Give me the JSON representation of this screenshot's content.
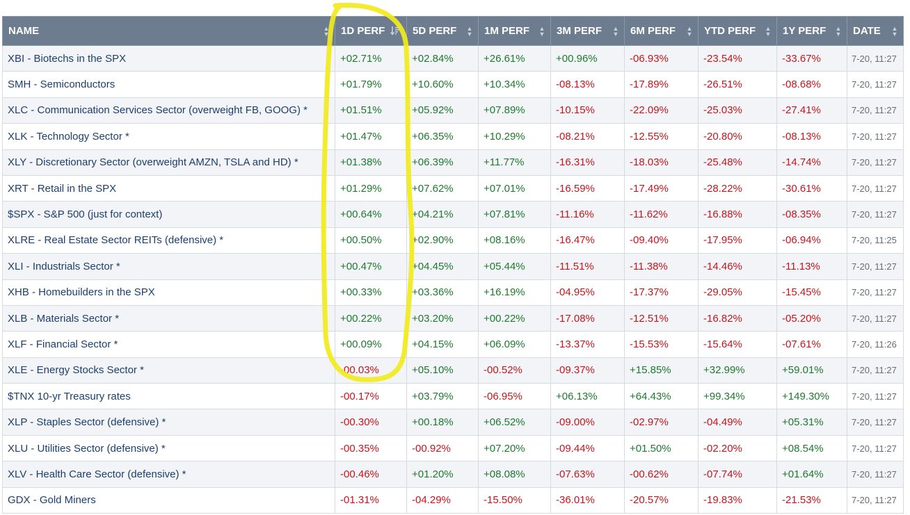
{
  "table": {
    "columns": [
      {
        "key": "name",
        "label": "NAME"
      },
      {
        "key": "d1",
        "label": "1D PERF"
      },
      {
        "key": "d5",
        "label": "5D PERF"
      },
      {
        "key": "m1",
        "label": "1M PERF"
      },
      {
        "key": "m3",
        "label": "3M PERF"
      },
      {
        "key": "m6",
        "label": "6M PERF"
      },
      {
        "key": "ytd",
        "label": "YTD PERF"
      },
      {
        "key": "y1",
        "label": "1Y PERF"
      },
      {
        "key": "date",
        "label": "DATE"
      }
    ],
    "sorted_column": "1D PERF",
    "sort_direction": "descending",
    "rows": [
      {
        "name": "XBI - Biotechs in the SPX",
        "d1": "+02.71%",
        "d5": "+02.84%",
        "m1": "+26.61%",
        "m3": "+00.96%",
        "m6": "-06.93%",
        "ytd": "-23.54%",
        "y1": "-33.67%",
        "date": "7-20, 11:27"
      },
      {
        "name": "SMH - Semiconductors",
        "d1": "+01.79%",
        "d5": "+10.60%",
        "m1": "+10.34%",
        "m3": "-08.13%",
        "m6": "-17.89%",
        "ytd": "-26.51%",
        "y1": "-08.68%",
        "date": "7-20, 11:27"
      },
      {
        "name": "XLC - Communication Services Sector (overweight FB, GOOG) *",
        "d1": "+01.51%",
        "d5": "+05.92%",
        "m1": "+07.89%",
        "m3": "-10.15%",
        "m6": "-22.09%",
        "ytd": "-25.03%",
        "y1": "-27.41%",
        "date": "7-20, 11:27"
      },
      {
        "name": "XLK - Technology Sector *",
        "d1": "+01.47%",
        "d5": "+06.35%",
        "m1": "+10.29%",
        "m3": "-08.21%",
        "m6": "-12.55%",
        "ytd": "-20.80%",
        "y1": "-08.13%",
        "date": "7-20, 11:27"
      },
      {
        "name": "XLY - Discretionary Sector (overweight AMZN, TSLA and HD) *",
        "d1": "+01.38%",
        "d5": "+06.39%",
        "m1": "+11.77%",
        "m3": "-16.31%",
        "m6": "-18.03%",
        "ytd": "-25.48%",
        "y1": "-14.74%",
        "date": "7-20, 11:27"
      },
      {
        "name": "XRT - Retail in the SPX",
        "d1": "+01.29%",
        "d5": "+07.62%",
        "m1": "+07.01%",
        "m3": "-16.59%",
        "m6": "-17.49%",
        "ytd": "-28.22%",
        "y1": "-30.61%",
        "date": "7-20, 11:27"
      },
      {
        "name": "$SPX - S&P 500 (just for context)",
        "d1": "+00.64%",
        "d5": "+04.21%",
        "m1": "+07.81%",
        "m3": "-11.16%",
        "m6": "-11.62%",
        "ytd": "-16.88%",
        "y1": "-08.35%",
        "date": "7-20, 11:27"
      },
      {
        "name": "XLRE - Real Estate Sector REITs (defensive) *",
        "d1": "+00.50%",
        "d5": "+02.90%",
        "m1": "+08.16%",
        "m3": "-16.47%",
        "m6": "-09.40%",
        "ytd": "-17.95%",
        "y1": "-06.94%",
        "date": "7-20, 11:25"
      },
      {
        "name": "XLI - Industrials Sector *",
        "d1": "+00.47%",
        "d5": "+04.45%",
        "m1": "+05.44%",
        "m3": "-11.51%",
        "m6": "-11.38%",
        "ytd": "-14.46%",
        "y1": "-11.13%",
        "date": "7-20, 11:27"
      },
      {
        "name": "XHB - Homebuilders in the SPX",
        "d1": "+00.33%",
        "d5": "+03.36%",
        "m1": "+16.19%",
        "m3": "-04.95%",
        "m6": "-17.37%",
        "ytd": "-29.05%",
        "y1": "-15.45%",
        "date": "7-20, 11:27"
      },
      {
        "name": "XLB - Materials Sector *",
        "d1": "+00.22%",
        "d5": "+03.20%",
        "m1": "+00.22%",
        "m3": "-17.08%",
        "m6": "-12.51%",
        "ytd": "-16.82%",
        "y1": "-05.20%",
        "date": "7-20, 11:27"
      },
      {
        "name": "XLF - Financial Sector *",
        "d1": "+00.09%",
        "d5": "+04.15%",
        "m1": "+06.09%",
        "m3": "-13.37%",
        "m6": "-15.53%",
        "ytd": "-15.64%",
        "y1": "-07.61%",
        "date": "7-20, 11:26"
      },
      {
        "name": "XLE - Energy Stocks Sector *",
        "d1": "-00.03%",
        "d5": "+05.10%",
        "m1": "-00.52%",
        "m3": "-09.37%",
        "m6": "+15.85%",
        "ytd": "+32.99%",
        "y1": "+59.01%",
        "date": "7-20, 11:27"
      },
      {
        "name": "$TNX 10-yr Treasury rates",
        "d1": "-00.17%",
        "d5": "+03.79%",
        "m1": "-06.95%",
        "m3": "+06.13%",
        "m6": "+64.43%",
        "ytd": "+99.34%",
        "y1": "+149.30%",
        "date": "7-20, 11:27"
      },
      {
        "name": "XLP - Staples Sector (defensive) *",
        "d1": "-00.30%",
        "d5": "+00.18%",
        "m1": "+06.52%",
        "m3": "-09.00%",
        "m6": "-02.97%",
        "ytd": "-04.49%",
        "y1": "+05.31%",
        "date": "7-20, 11:27"
      },
      {
        "name": "XLU - Utilities Sector (defensive) *",
        "d1": "-00.35%",
        "d5": "-00.92%",
        "m1": "+07.20%",
        "m3": "-09.44%",
        "m6": "+01.50%",
        "ytd": "-02.20%",
        "y1": "+08.54%",
        "date": "7-20, 11:27"
      },
      {
        "name": "XLV - Health Care Sector (defensive) *",
        "d1": "-00.46%",
        "d5": "+01.20%",
        "m1": "+08.08%",
        "m3": "-07.63%",
        "m6": "-00.62%",
        "ytd": "-07.74%",
        "y1": "+01.64%",
        "date": "7-20, 11:27"
      },
      {
        "name": "GDX - Gold Miners",
        "d1": "-01.31%",
        "d5": "-04.29%",
        "m1": "-15.50%",
        "m3": "-36.01%",
        "m6": "-20.57%",
        "ytd": "-19.83%",
        "y1": "-21.53%",
        "date": "7-20, 11:27"
      }
    ]
  },
  "colors": {
    "header_bg": "#6d7c8f",
    "positive": "#1d7a2d",
    "negative": "#c4161c",
    "name_text": "#1c3f6e",
    "highlight_annotation": "#f2ea1c"
  },
  "icons": {
    "sort_idle": "sort-arrows-icon",
    "sort_active": "sort-descending-icon",
    "annotation": "yellow-freehand-circle"
  }
}
